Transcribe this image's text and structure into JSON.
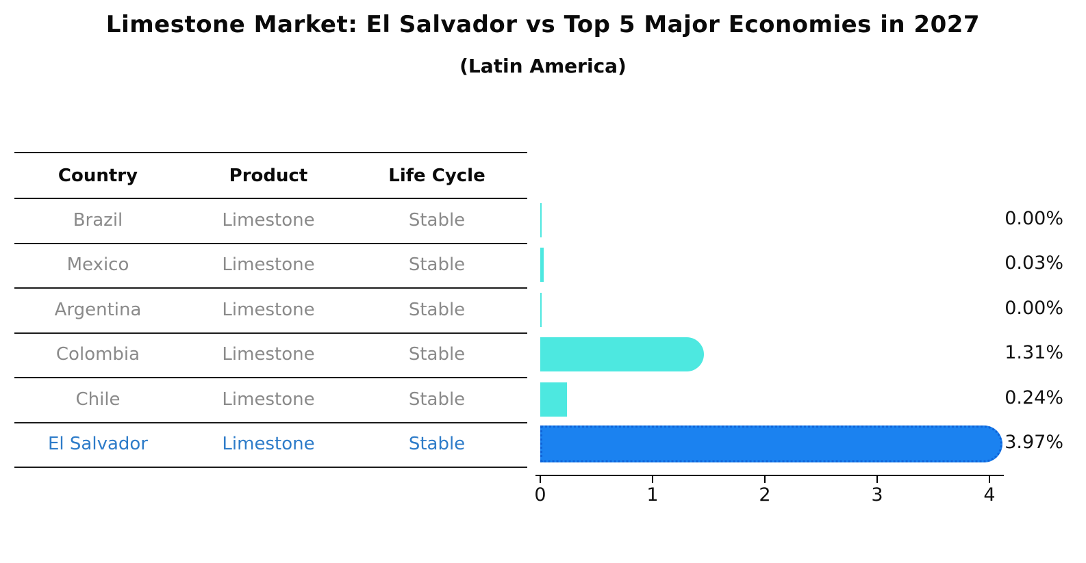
{
  "title": "Limestone Market: El Salvador vs Top 5 Major Economies in 2027",
  "subtitle": "(Latin America)",
  "colors": {
    "bar_teal": "#4DE8E0",
    "bar_blue": "#1B82F0",
    "bar_blue_border": "#0E63D8",
    "highlight_text": "#2E7CC9",
    "row_text": "#8A8A8A",
    "header_text": "#0A0A0A",
    "axis": "#000000"
  },
  "table": {
    "headers": [
      "Country",
      "Product",
      "Life Cycle"
    ],
    "rows": [
      {
        "country": "Brazil",
        "product": "Limestone",
        "life_cycle": "Stable",
        "highlight": false
      },
      {
        "country": "Mexico",
        "product": "Limestone",
        "life_cycle": "Stable",
        "highlight": false
      },
      {
        "country": "Argentina",
        "product": "Limestone",
        "life_cycle": "Stable",
        "highlight": false
      },
      {
        "country": "Colombia",
        "product": "Limestone",
        "life_cycle": "Stable",
        "highlight": false
      },
      {
        "country": "Chile",
        "product": "Limestone",
        "life_cycle": "Stable",
        "highlight": false
      },
      {
        "country": "El Salvador",
        "product": "Limestone",
        "life_cycle": "Stable",
        "highlight": true
      }
    ]
  },
  "chart_data": {
    "type": "bar",
    "orientation": "horizontal",
    "title": "Limestone Market: El Salvador vs Top 5 Major Economies in 2027",
    "subtitle": "(Latin America)",
    "categories": [
      "Brazil",
      "Mexico",
      "Argentina",
      "Colombia",
      "Chile",
      "El Salvador"
    ],
    "values": [
      0.0,
      0.03,
      0.0,
      1.31,
      0.24,
      3.97
    ],
    "labels": [
      "0.00%",
      "0.03%",
      "0.00%",
      "1.31%",
      "0.24%",
      "3.97%"
    ],
    "highlight_index": 5,
    "xlabel": "",
    "ylabel": "",
    "xlim": [
      0,
      4.2
    ],
    "x_ticks": [
      0,
      1,
      2,
      3,
      4
    ],
    "grid": false,
    "legend": false
  }
}
